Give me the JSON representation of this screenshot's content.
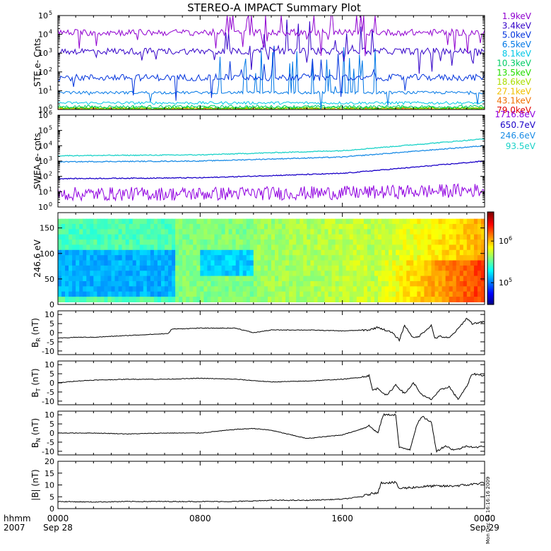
{
  "title": "STEREO-A IMPACT Summary Plot",
  "time_axis": {
    "row1_label": "hhmm",
    "row2_label": "2007",
    "ticks": [
      {
        "hour": 0,
        "time": "0000",
        "date": "Sep 28"
      },
      {
        "hour": 8,
        "time": "0800",
        "date": ""
      },
      {
        "hour": 16,
        "time": "1600",
        "date": ""
      },
      {
        "hour": 24,
        "time": "0000",
        "date": "Sep 29"
      }
    ],
    "range_hours": [
      0,
      24
    ]
  },
  "side_stamp": "Mon Dec 14 16:16:16 2009",
  "chart_data": [
    {
      "id": "ste",
      "type": "line",
      "ylabel": "STE e- Cnts",
      "yscale": "log",
      "ylim_exp": [
        0,
        5
      ],
      "ytick_base": "10",
      "ytick_exps": [
        "0",
        "1",
        "2",
        "3",
        "4",
        "5"
      ],
      "series": [
        {
          "name": "1.9keV",
          "color": "#9000d0",
          "level_exp": 4.1
        },
        {
          "name": "3.4keV",
          "color": "#3300c8",
          "level_exp": 3.1
        },
        {
          "name": "5.0keV",
          "color": "#0033dd",
          "level_exp": 1.7
        },
        {
          "name": "6.5keV",
          "color": "#0077e6",
          "level_exp": 0.9
        },
        {
          "name": "8.1keV",
          "color": "#00c8e6",
          "level_exp": 0.35
        },
        {
          "name": "10.3keV",
          "color": "#00cc66",
          "level_exp": 0.15
        },
        {
          "name": "13.5keV",
          "color": "#22dd00",
          "level_exp": 0.08
        },
        {
          "name": "18.6keV",
          "color": "#aadd00",
          "level_exp": 0.05
        },
        {
          "name": "27.1keV",
          "color": "#f0c000",
          "level_exp": 0.03
        },
        {
          "name": "43.1keV",
          "color": "#f07000",
          "level_exp": 0.02
        },
        {
          "name": "79.0keV",
          "color": "#e00000",
          "level_exp": 0.01
        }
      ]
    },
    {
      "id": "swea",
      "type": "line",
      "ylabel": "SWEA e- cnts",
      "yscale": "log",
      "ylim_exp": [
        0,
        6
      ],
      "ytick_base": "10",
      "ytick_exps": [
        "0",
        "1",
        "2",
        "3",
        "4",
        "5",
        "6"
      ],
      "series": [
        {
          "name": "1716.8eV",
          "color": "#9000e0",
          "start_exp": 0.85,
          "end_exp": 1.1
        },
        {
          "name": "650.7eV",
          "color": "#1a00c8",
          "start_exp": 1.85,
          "end_exp": 3.0
        },
        {
          "name": "246.6eV",
          "color": "#1a8ce6",
          "start_exp": 2.95,
          "end_exp": 4.0
        },
        {
          "name": "93.5eV",
          "color": "#1ad2c8",
          "start_exp": 3.35,
          "end_exp": 4.45
        }
      ]
    },
    {
      "id": "pad",
      "type": "heatmap",
      "ylabel": "246.6 eV",
      "ylim": [
        0,
        180
      ],
      "yticks": [
        "0",
        "50",
        "100",
        "150"
      ],
      "colorbar": {
        "scale": "log",
        "range": [
          30000,
          5000000
        ],
        "tick_base": "10",
        "tick_exps": [
          "5",
          "6"
        ]
      }
    },
    {
      "id": "br",
      "type": "line",
      "ylabel_main": "B",
      "ylabel_sub": "R",
      "ylabel_unit": "(nT)",
      "ylim": [
        -12,
        12
      ],
      "yticks": [
        "-10",
        "-5",
        "0",
        "5",
        "10"
      ],
      "x": [
        0,
        1,
        2,
        3,
        5,
        6.2,
        6.4,
        8,
        10,
        11,
        12,
        14,
        16,
        17.5,
        18,
        18.8,
        19.2,
        19.5,
        20,
        20.3,
        21,
        21.2,
        21.5,
        22,
        22.5,
        23,
        23.3,
        24
      ],
      "y": [
        -3,
        -2.5,
        -2.5,
        -2,
        -1,
        -0.5,
        2,
        2.5,
        2.5,
        0,
        1.5,
        1.5,
        1,
        1.5,
        3,
        0,
        -4,
        4,
        -3,
        -2,
        4,
        -3,
        -2,
        -3,
        2,
        8,
        5,
        6
      ]
    },
    {
      "id": "bt",
      "type": "line",
      "ylabel_main": "B",
      "ylabel_sub": "T",
      "ylabel_unit": "(nT)",
      "ylim": [
        -12,
        12
      ],
      "yticks": [
        "-10",
        "-5",
        "0",
        "5",
        "10"
      ],
      "x": [
        0,
        1,
        2,
        4,
        6,
        8,
        10,
        12,
        14,
        16,
        17,
        17.5,
        17.7,
        18,
        18.5,
        19,
        19.5,
        20,
        20.5,
        21,
        21.5,
        22,
        22.5,
        23,
        23.3,
        24
      ],
      "y": [
        0,
        1,
        1.5,
        2,
        2,
        2.5,
        2,
        0.5,
        1,
        2,
        3,
        4,
        -4,
        -3,
        -7,
        -1,
        -6,
        0,
        -7,
        -9,
        -4,
        -2,
        -9,
        -2,
        5,
        4
      ]
    },
    {
      "id": "bn",
      "type": "line",
      "ylabel_main": "B",
      "ylabel_sub": "N",
      "ylabel_unit": "(nT)",
      "ylim": [
        -12,
        12
      ],
      "yticks": [
        "-10",
        "-5",
        "0",
        "5",
        "10"
      ],
      "x": [
        0,
        2,
        4,
        6,
        8,
        10,
        11,
        12,
        14,
        16,
        17,
        17.5,
        18,
        18.3,
        19,
        19.2,
        19.8,
        20.2,
        20.5,
        21,
        21.3,
        21.8,
        22.2,
        22.5,
        23,
        23.5,
        24
      ],
      "y": [
        0,
        0,
        -0.5,
        0,
        0,
        2,
        2.5,
        1.5,
        -3,
        -1,
        2,
        4,
        0,
        10,
        10,
        -8,
        -9,
        5,
        9,
        6,
        -10,
        -7,
        -9,
        -9,
        -7,
        -8,
        -7
      ]
    },
    {
      "id": "bmag",
      "type": "line",
      "ylabel_main": "|B|",
      "ylabel_sub": "",
      "ylabel_unit": "(nT)",
      "ylim": [
        0,
        20
      ],
      "yticks": [
        "0",
        "5",
        "10",
        "15",
        "20"
      ],
      "x": [
        0,
        2,
        4,
        6,
        8,
        10,
        12,
        14,
        16,
        17,
        18,
        18.2,
        19,
        19.2,
        20,
        21,
        22,
        23,
        24
      ],
      "y": [
        3,
        2.8,
        3,
        3,
        3,
        3,
        3.5,
        3.5,
        4,
        5,
        7,
        11,
        11,
        8.5,
        9,
        9.5,
        9.5,
        10,
        11
      ]
    }
  ]
}
